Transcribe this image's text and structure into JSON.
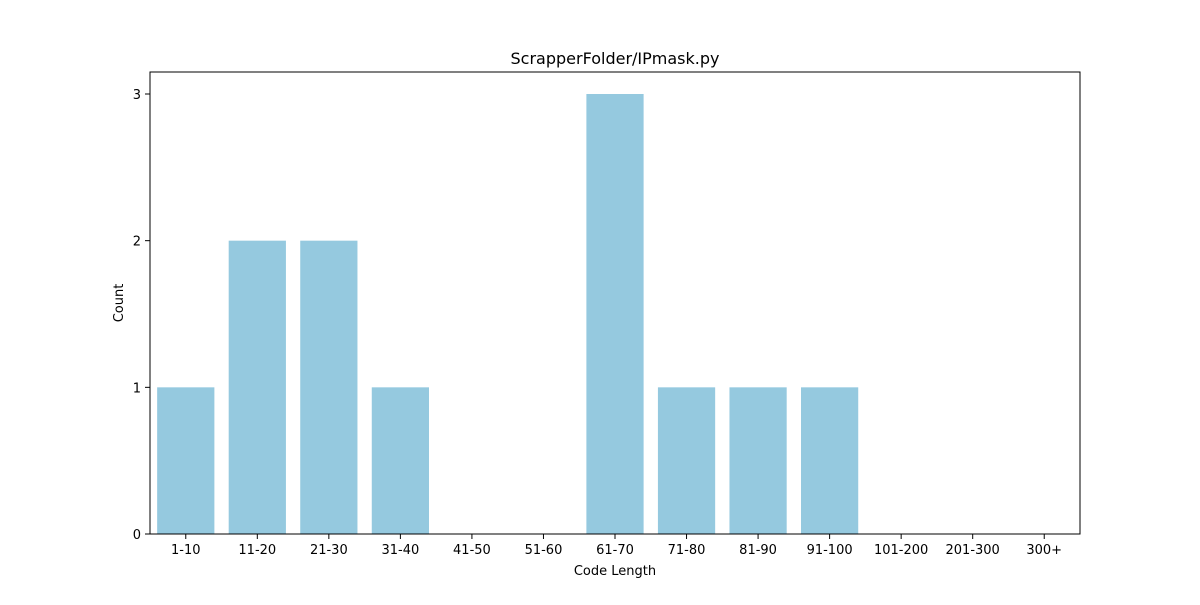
{
  "chart_data": {
    "type": "bar",
    "title": "ScrapperFolder/IPmask.py",
    "xlabel": "Code Length",
    "ylabel": "Count",
    "categories": [
      "1-10",
      "11-20",
      "21-30",
      "31-40",
      "41-50",
      "51-60",
      "61-70",
      "71-80",
      "81-90",
      "91-100",
      "101-200",
      "201-300",
      "300+"
    ],
    "values": [
      1,
      2,
      2,
      1,
      0,
      0,
      3,
      1,
      1,
      1,
      0,
      0,
      0
    ],
    "yticks": [
      0,
      1,
      2,
      3
    ],
    "ylim": [
      0,
      3.15
    ],
    "grid": false,
    "legend": "none",
    "bar_color": "#95c9df"
  }
}
